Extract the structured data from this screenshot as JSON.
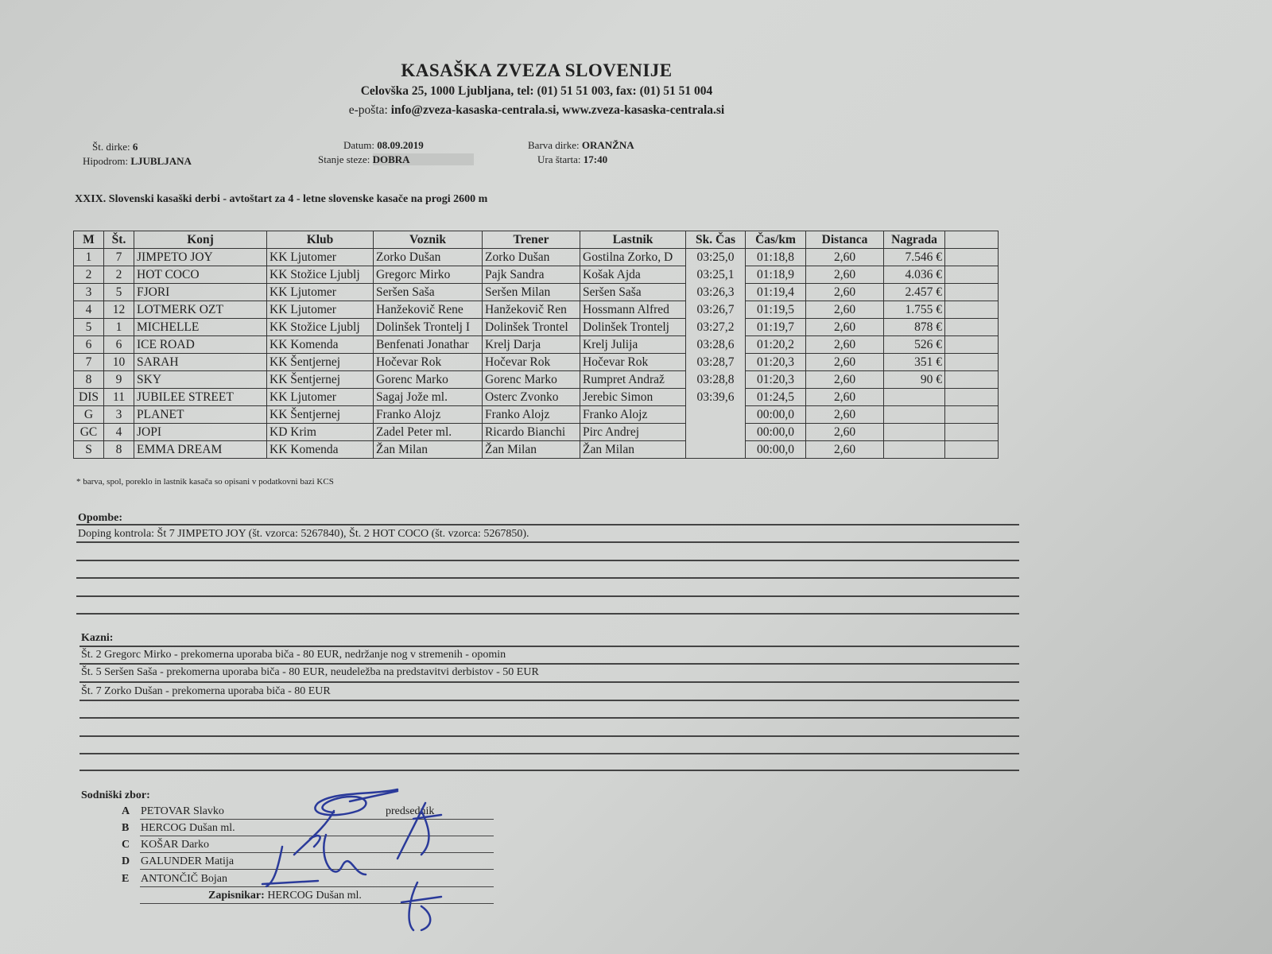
{
  "header": {
    "title": "KASAŠKA ZVEZA SLOVENIJE",
    "address": "Celovška 25, 1000 Ljubljana, tel: (01) 51 51 003, fax: (01) 51 51 004",
    "email_label": "e-pošta:",
    "email_value": "info@zveza-kasaska-centrala.si, www.zveza-kasaska-centrala.si"
  },
  "meta": {
    "race_no_label": "Št. dirke:",
    "race_no": "6",
    "hippodrome_label": "Hipodrom:",
    "hippodrome": "LJUBLJANA",
    "date_label": "Datum:",
    "date": "08.09.2019",
    "track_label": "Stanje steze:",
    "track": "DOBRA",
    "color_label": "Barva dirke:",
    "color": "ORANŽNA",
    "start_label": "Ura štarta:",
    "start": "17:40"
  },
  "race_title": "XXIX. Slovenski kasaški derbi - avtoštart za 4 - letne slovenske kasače na progi 2600 m",
  "table": {
    "columns": [
      "M",
      "Št.",
      "Konj",
      "Klub",
      "Voznik",
      "Trener",
      "Lastnik",
      "Sk. Čas",
      "Čas/km",
      "Distanca",
      "Nagrada",
      ""
    ],
    "rows": [
      [
        "1",
        "7",
        "JIMPETO JOY",
        "KK Ljutomer",
        "Zorko Dušan",
        "Zorko Dušan",
        "Gostilna Zorko, D",
        "03:25,0",
        "01:18,8",
        "2,60",
        "7.546 €",
        ""
      ],
      [
        "2",
        "2",
        "HOT COCO",
        "KK Stožice Ljublj",
        "Gregorc Mirko",
        "Pajk Sandra",
        "Košak Ajda",
        "03:25,1",
        "01:18,9",
        "2,60",
        "4.036 €",
        ""
      ],
      [
        "3",
        "5",
        "FJORI",
        "KK Ljutomer",
        "Seršen Saša",
        "Seršen Milan",
        "Seršen Saša",
        "03:26,3",
        "01:19,4",
        "2,60",
        "2.457 €",
        ""
      ],
      [
        "4",
        "12",
        "LOTMERK OZT",
        "KK Ljutomer",
        "Hanžekovič Rene",
        "Hanžekovič Ren",
        "Hossmann Alfred",
        "03:26,7",
        "01:19,5",
        "2,60",
        "1.755 €",
        ""
      ],
      [
        "5",
        "1",
        "MICHELLE",
        "KK Stožice Ljublj",
        "Dolinšek Trontelj I",
        "Dolinšek Trontel",
        "Dolinšek Trontelj",
        "03:27,2",
        "01:19,7",
        "2,60",
        "878 €",
        ""
      ],
      [
        "6",
        "6",
        "ICE ROAD",
        "KK Komenda",
        "Benfenati Jonathar",
        "Krelj Darja",
        "Krelj Julija",
        "03:28,6",
        "01:20,2",
        "2,60",
        "526 €",
        ""
      ],
      [
        "7",
        "10",
        "SARAH",
        "KK Šentjernej",
        "Hočevar Rok",
        "Hočevar Rok",
        "Hočevar Rok",
        "03:28,7",
        "01:20,3",
        "2,60",
        "351 €",
        ""
      ],
      [
        "8",
        "9",
        "SKY",
        "KK Šentjernej",
        "Gorenc Marko",
        "Gorenc Marko",
        "Rumpret Andraž",
        "03:28,8",
        "01:20,3",
        "2,60",
        "90 €",
        ""
      ],
      [
        "DIS",
        "11",
        "JUBILEE STREET",
        "KK Ljutomer",
        "Sagaj Jože ml.",
        "Osterc Zvonko",
        "Jerebic Simon",
        "03:39,6",
        "01:24,5",
        "2,60",
        "",
        ""
      ],
      [
        "G",
        "3",
        "PLANET",
        "KK Šentjernej",
        "Franko Alojz",
        "Franko Alojz",
        "Franko Alojz",
        "",
        "00:00,0",
        "2,60",
        "",
        ""
      ],
      [
        "GC",
        "4",
        "JOPI",
        "KD Krim",
        "Zadel Peter ml.",
        "Ricardo Bianchi",
        "Pirc Andrej",
        "",
        "00:00,0",
        "2,60",
        "",
        ""
      ],
      [
        "S",
        "8",
        "EMMA DREAM",
        "KK Komenda",
        "Žan Milan",
        "Žan Milan",
        "Žan Milan",
        "",
        "00:00,0",
        "2,60",
        "",
        ""
      ]
    ]
  },
  "footnote": "* barva, spol, poreklo in lastnik kasača so opisani v podatkovni bazi KCS",
  "notes": {
    "label": "Opombe:",
    "lines": [
      "Doping kontrola: Št 7 JIMPETO JOY (št. vzorca: 5267840), Št. 2 HOT COCO (št. vzorca: 5267850)."
    ]
  },
  "penalties": {
    "label": "Kazni:",
    "lines": [
      "Št. 2 Gregorc Mirko - prekomerna uporaba biča - 80 EUR, nedržanje nog v stremenih - opomin",
      "Št. 5 Seršen Saša - prekomerna uporaba biča - 80 EUR, neudeležba na predstavitvi derbistov - 50 EUR",
      "Št. 7 Zorko Dušan - prekomerna uporaba biča - 80 EUR"
    ]
  },
  "judges": {
    "label": "Sodniški zbor:",
    "members": [
      {
        "letter": "A",
        "name": "PETOVAR Slavko"
      },
      {
        "letter": "B",
        "name": "HERCOG Dušan ml."
      },
      {
        "letter": "C",
        "name": "KOŠAR Darko"
      },
      {
        "letter": "D",
        "name": "GALUNDER Matija"
      },
      {
        "letter": "E",
        "name": "ANTONČIČ Bojan"
      }
    ],
    "president_label": "predsednik",
    "recorder_label": "Zapisnikar:",
    "recorder": "HERCOG Dušan ml."
  },
  "colors": {
    "ink": "#222222",
    "signature": "#2a3a9a",
    "paper": "#d4d6d4"
  }
}
